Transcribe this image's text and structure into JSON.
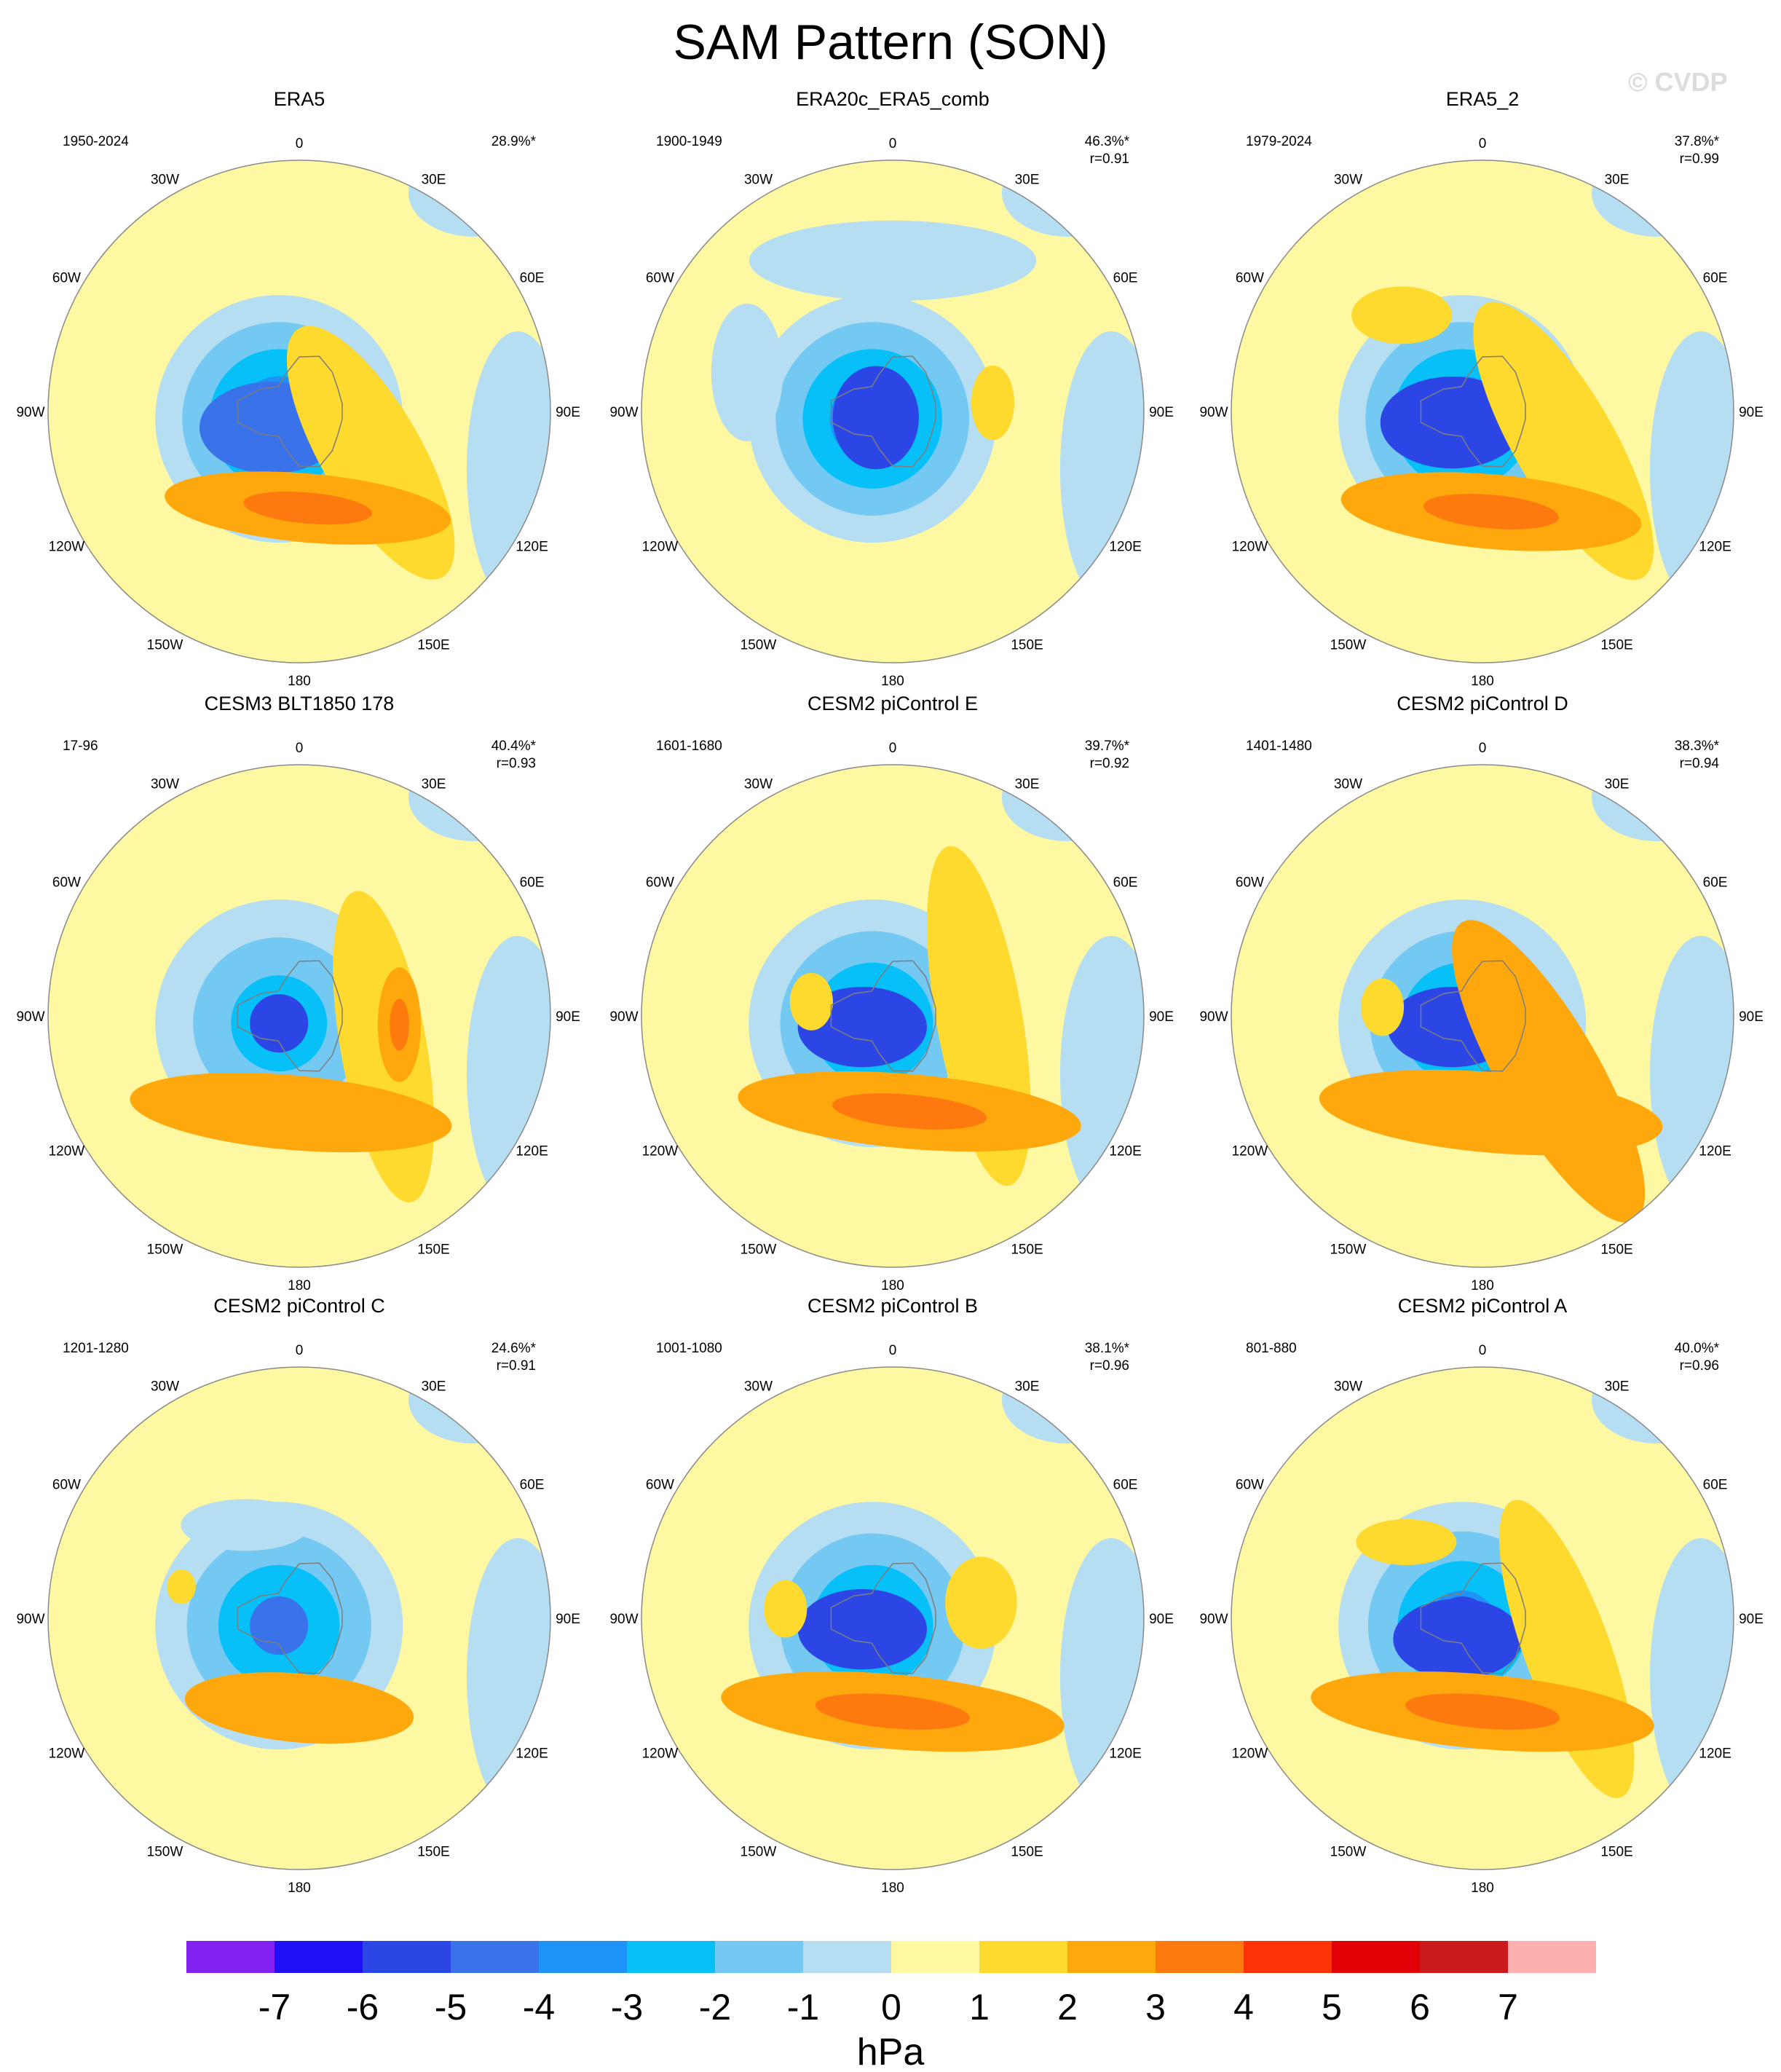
{
  "figure": {
    "title": "SAM Pattern (SON)",
    "copyright": "© CVDP"
  },
  "colors": {
    "ocean_land_bg": "#fef8a3",
    "map_outline": "#8a8a8a",
    "coast": "#7d7d7d"
  },
  "chart_data": {
    "type": "heatmap",
    "description_field": "SLP regression (hPa) onto SAM index, south polar stereographic maps, 3x3 panels",
    "lon_labels": [
      "0",
      "30E",
      "60E",
      "90E",
      "120E",
      "150E",
      "180",
      "150W",
      "120W",
      "90W",
      "60W",
      "30W"
    ],
    "panels": [
      {
        "title": "ERA5",
        "period": "1950-2024",
        "pct": "28.9%*",
        "r": "",
        "center": [
          -3.5,
          -4.5
        ],
        "features": [
          {
            "lon": 240,
            "colat": 9,
            "rx": 20,
            "ry": 16,
            "rot": 0,
            "v": -4.6
          },
          {
            "lon": 120,
            "colat": 23,
            "rx": 14,
            "ry": 50,
            "rot": -30,
            "v": 1.8
          },
          {
            "lon": 175,
            "colat": 27,
            "rx": 40,
            "ry": 12,
            "rot": 5,
            "v": 2.6
          }
        ]
      },
      {
        "title": "ERA20c_ERA5_comb",
        "period": "1900-1949",
        "pct": "46.3%*",
        "r": "r=0.91",
        "center": [
          -3.5,
          -5.5
        ],
        "features": [
          {
            "lon": 250,
            "colat": 5,
            "rx": 12,
            "ry": 18,
            "rot": 0,
            "v": -5.9
          },
          {
            "lon": 85,
            "colat": 28,
            "rx": 6,
            "ry": 13,
            "rot": 0,
            "v": 1.4
          },
          {
            "lon": 285,
            "colat": 42,
            "rx": 10,
            "ry": 24,
            "rot": 0,
            "v": -0.8
          },
          {
            "lon": 0,
            "colat": 42,
            "rx": 40,
            "ry": 14,
            "rot": 0,
            "v": -0.8
          }
        ]
      },
      {
        "title": "ERA5_2",
        "period": "1979-2024",
        "pct": "37.8%*",
        "r": "r=0.99",
        "center": [
          -3.5,
          -4.5
        ],
        "features": [
          {
            "lon": 250,
            "colat": 9,
            "rx": 20,
            "ry": 16,
            "rot": 0,
            "v": -5.4
          },
          {
            "lon": 110,
            "colat": 24,
            "rx": 14,
            "ry": 55,
            "rot": -30,
            "v": 1.9
          },
          {
            "lon": 175,
            "colat": 28,
            "rx": 42,
            "ry": 13,
            "rot": 5,
            "v": 2.8
          },
          {
            "lon": 320,
            "colat": 35,
            "rx": 14,
            "ry": 10,
            "rot": 0,
            "v": 1.3
          }
        ]
      },
      {
        "title": "CESM3 BLT1850 178",
        "period": "17-96",
        "pct": "40.4%*",
        "r": "r=0.93",
        "center": [
          -2.5,
          -5.5
        ],
        "features": [
          {
            "lon": 110,
            "colat": 25,
            "rx": 12,
            "ry": 55,
            "rot": -10,
            "v": 1.9
          },
          {
            "lon": 95,
            "colat": 28,
            "rx": 6,
            "ry": 20,
            "rot": 0,
            "v": 2.5
          },
          {
            "lon": 185,
            "colat": 27,
            "rx": 45,
            "ry": 13,
            "rot": 5,
            "v": 2.3
          }
        ]
      },
      {
        "title": "CESM2 piControl E",
        "period": "1601-1680",
        "pct": "39.7%*",
        "r": "r=0.92",
        "center": [
          -3.0,
          -5.5
        ],
        "features": [
          {
            "lon": 250,
            "colat": 9,
            "rx": 18,
            "ry": 14,
            "rot": 0,
            "v": -5.3
          },
          {
            "lon": 90,
            "colat": 24,
            "rx": 12,
            "ry": 60,
            "rot": -10,
            "v": 1.9
          },
          {
            "lon": 170,
            "colat": 27,
            "rx": 48,
            "ry": 13,
            "rot": 5,
            "v": 2.6
          },
          {
            "lon": 280,
            "colat": 23,
            "rx": 6,
            "ry": 10,
            "rot": 0,
            "v": 1.2
          }
        ]
      },
      {
        "title": "CESM2 piControl D",
        "period": "1401-1480",
        "pct": "38.3%*",
        "r": "r=0.94",
        "center": [
          -3.0,
          -5.5
        ],
        "features": [
          {
            "lon": 250,
            "colat": 9,
            "rx": 18,
            "ry": 14,
            "rot": 0,
            "v": -5.5
          },
          {
            "lon": 130,
            "colat": 24,
            "rx": 14,
            "ry": 60,
            "rot": -30,
            "v": 2.1
          },
          {
            "lon": 175,
            "colat": 27,
            "rx": 48,
            "ry": 14,
            "rot": 5,
            "v": 2.3
          },
          {
            "lon": 275,
            "colat": 28,
            "rx": 6,
            "ry": 10,
            "rot": 0,
            "v": 1.2
          }
        ]
      },
      {
        "title": "CESM2 piControl C",
        "period": "1201-1280",
        "pct": "24.6%*",
        "r": "r=0.91",
        "center": [
          -3.0,
          -4.5
        ],
        "features": [
          {
            "lon": 180,
            "colat": 25,
            "rx": 32,
            "ry": 12,
            "rot": 5,
            "v": 2.0
          },
          {
            "lon": 330,
            "colat": 30,
            "rx": 18,
            "ry": 9,
            "rot": 0,
            "v": -0.8
          },
          {
            "lon": 285,
            "colat": 34,
            "rx": 4,
            "ry": 6,
            "rot": 0,
            "v": 1.2
          }
        ]
      },
      {
        "title": "CESM2 piControl B",
        "period": "1001-1080",
        "pct": "38.1%*",
        "r": "r=0.96",
        "center": [
          -3.0,
          -5.5
        ],
        "features": [
          {
            "lon": 250,
            "colat": 9,
            "rx": 18,
            "ry": 14,
            "rot": 0,
            "v": -5.3
          },
          {
            "lon": 180,
            "colat": 26,
            "rx": 48,
            "ry": 13,
            "rot": 5,
            "v": 2.5
          },
          {
            "lon": 80,
            "colat": 25,
            "rx": 10,
            "ry": 16,
            "rot": 0,
            "v": 1.3
          },
          {
            "lon": 275,
            "colat": 30,
            "rx": 6,
            "ry": 10,
            "rot": 0,
            "v": 1.2
          }
        ]
      },
      {
        "title": "CESM2 piControl A",
        "period": "801-880",
        "pct": "40.0%*",
        "r": "r=0.96",
        "center": [
          -3.2,
          -5.5
        ],
        "features": [
          {
            "lon": 230,
            "colat": 9,
            "rx": 18,
            "ry": 14,
            "rot": 0,
            "v": -5.3
          },
          {
            "lon": 110,
            "colat": 25,
            "rx": 12,
            "ry": 55,
            "rot": -20,
            "v": 1.9
          },
          {
            "lon": 180,
            "colat": 26,
            "rx": 48,
            "ry": 13,
            "rot": 5,
            "v": 2.8
          },
          {
            "lon": 315,
            "colat": 30,
            "rx": 14,
            "ry": 8,
            "rot": 0,
            "v": 1.3
          }
        ]
      }
    ],
    "colorbar": {
      "levels": [
        "-7",
        "-6",
        "-5",
        "-4",
        "-3",
        "-2",
        "-1",
        "0",
        "1",
        "2",
        "3",
        "4",
        "5",
        "6",
        "7"
      ],
      "colors": [
        "#8322f0",
        "#1f10f5",
        "#2b46e5",
        "#3a72ea",
        "#1e93f7",
        "#07c0f8",
        "#74c9f2",
        "#b5def3",
        "#fef8a3",
        "#fed92e",
        "#fea80e",
        "#fe7a0e",
        "#fe3308",
        "#e10006",
        "#cb1a1b",
        "#feb0b1"
      ],
      "units": "hPa"
    }
  }
}
